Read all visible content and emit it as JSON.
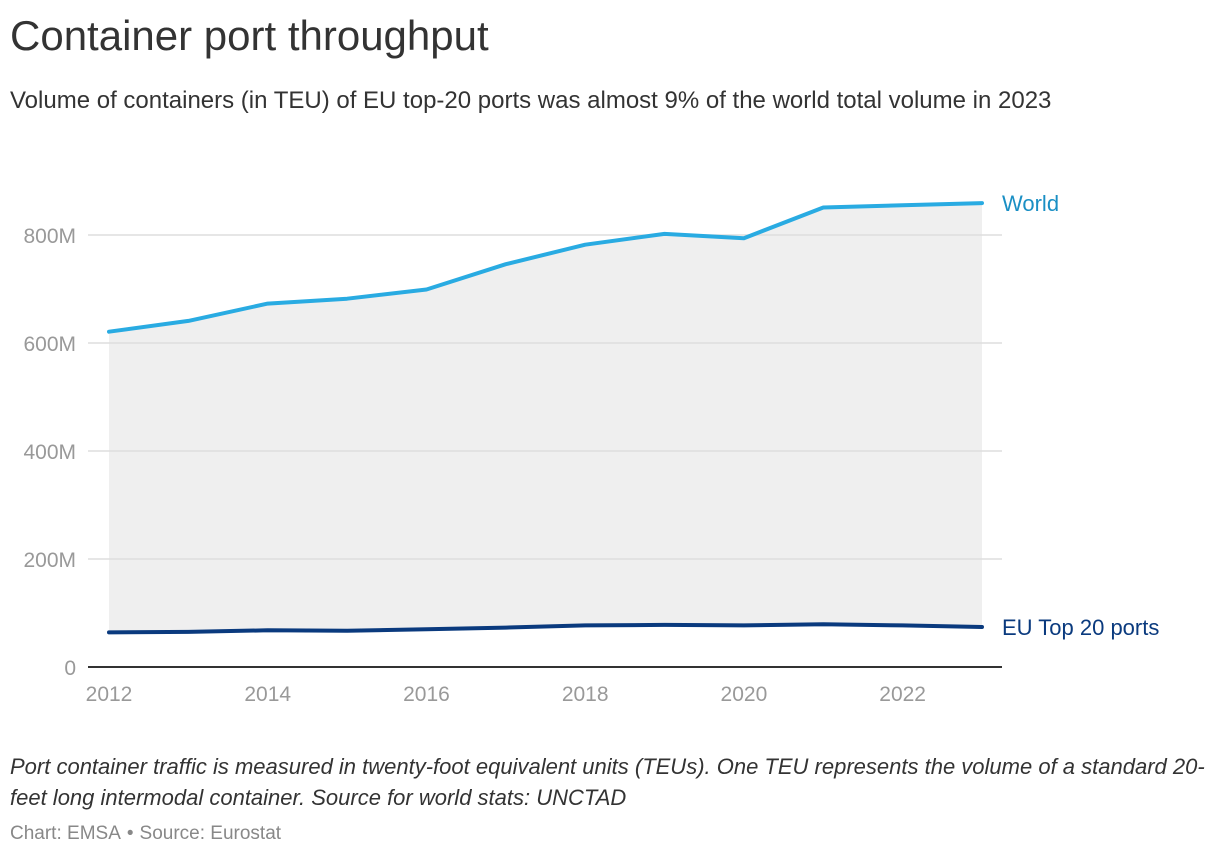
{
  "header": {
    "title": "Container port throughput",
    "subtitle": "Volume of containers (in TEU) of EU top-20 ports was almost 9% of the world total volume in 2023"
  },
  "footer": {
    "notes": "Port container traffic is measured in twenty-foot equivalent units (TEUs). One TEU represents the volume of a standard 20-feet long intermodal container. Source for world stats: UNCTAD",
    "chart_credit": "Chart: EMSA",
    "separator": "•",
    "source": "Source: Eurostat"
  },
  "chart_data": {
    "type": "line",
    "title": "Container port throughput",
    "subtitle": "Volume of containers (in TEU) of EU top-20 ports was almost 9% of the world total volume in 2023",
    "xlabel": "",
    "ylabel": "",
    "x": [
      2012,
      2013,
      2014,
      2015,
      2016,
      2017,
      2018,
      2019,
      2020,
      2021,
      2022,
      2023
    ],
    "x_ticks": [
      "2012",
      "2014",
      "2016",
      "2018",
      "2020",
      "2022"
    ],
    "x_tick_values": [
      2012,
      2014,
      2016,
      2018,
      2020,
      2022
    ],
    "y_ticks": [
      "0",
      "200M",
      "400M",
      "600M",
      "800M"
    ],
    "y_tick_values": [
      0,
      200000000,
      400000000,
      600000000,
      800000000
    ],
    "xlim": [
      2012,
      2023
    ],
    "ylim": [
      0,
      800000000
    ],
    "grid": true,
    "shaded_area_between_series": true,
    "series": [
      {
        "name": "World",
        "label": "World",
        "color": "#29abe2",
        "label_color": "#1a8fc4",
        "values": [
          621000000,
          641000000,
          673000000,
          682000000,
          699000000,
          746000000,
          782000000,
          802000000,
          794000000,
          851000000,
          855000000,
          859000000
        ]
      },
      {
        "name": "EU Top 20 ports",
        "label": "EU Top 20 ports",
        "color": "#0a3a7e",
        "label_color": "#0a3a7e",
        "values": [
          64000000,
          65000000,
          68000000,
          67000000,
          70000000,
          73000000,
          77000000,
          78000000,
          77000000,
          79000000,
          77000000,
          74000000
        ]
      }
    ],
    "colors": {
      "area_fill": "#efefef",
      "grid": "#dddddd",
      "axis": "#333333",
      "tick_label": "#999999"
    }
  }
}
